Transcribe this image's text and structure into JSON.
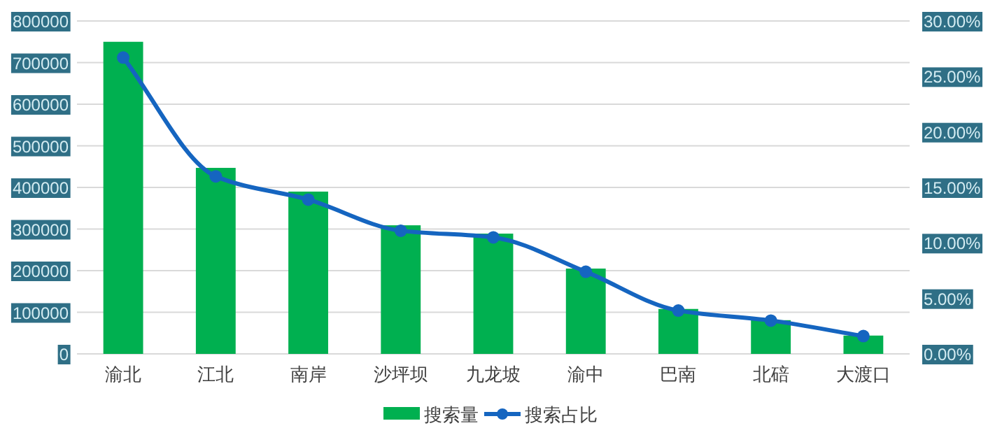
{
  "chart_data": {
    "type": "bar",
    "categories": [
      "渝北",
      "江北",
      "南岸",
      "沙坪坝",
      "九龙坡",
      "渝中",
      "巴南",
      "北碚",
      "大渡口"
    ],
    "series": [
      {
        "name": "搜索量",
        "color": "#00b050",
        "values": [
          750000,
          447000,
          390000,
          309000,
          289000,
          205000,
          108000,
          81000,
          44000
        ]
      },
      {
        "name": "搜索占比",
        "type": "line",
        "axis": "y2",
        "color": "#1565c0",
        "values": [
          26.7,
          16.0,
          13.9,
          11.1,
          10.5,
          7.4,
          3.9,
          3.0,
          1.6
        ]
      }
    ],
    "ylim": [
      0,
      800000
    ],
    "yticks": [
      0,
      100000,
      200000,
      300000,
      400000,
      500000,
      600000,
      700000,
      800000
    ],
    "y2lim": [
      0,
      30
    ],
    "y2ticks": [
      {
        "value": 0,
        "label": "0.00%"
      },
      {
        "value": 5,
        "label": "5.00%"
      },
      {
        "value": 10,
        "label": "10.00%"
      },
      {
        "value": 15,
        "label": "15.00%"
      },
      {
        "value": 20,
        "label": "20.00%"
      },
      {
        "value": 25,
        "label": "25.00%"
      },
      {
        "value": 30,
        "label": "30.00%"
      }
    ],
    "grid": "y",
    "legend": "bottom",
    "marker": "circle"
  }
}
